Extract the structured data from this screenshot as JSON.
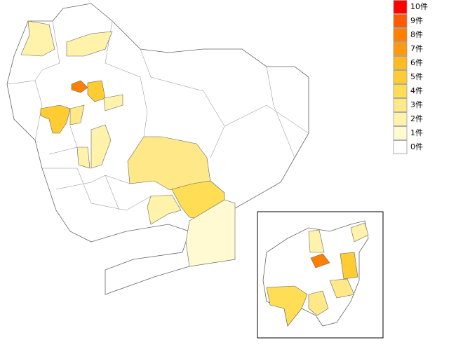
{
  "legend": {
    "items": [
      {
        "label": "10件",
        "value": 10,
        "color": "#ff0000"
      },
      {
        "label": "9件",
        "value": 9,
        "color": "#ff5a00"
      },
      {
        "label": "8件",
        "value": 8,
        "color": "#ff8000"
      },
      {
        "label": "7件",
        "value": 7,
        "color": "#ff9a10"
      },
      {
        "label": "6件",
        "value": 6,
        "color": "#ffbb22"
      },
      {
        "label": "5件",
        "value": 5,
        "color": "#ffcc33"
      },
      {
        "label": "4件",
        "value": 4,
        "color": "#ffdd55"
      },
      {
        "label": "3件",
        "value": 3,
        "color": "#ffe888"
      },
      {
        "label": "2件",
        "value": 2,
        "color": "#fff2aa"
      },
      {
        "label": "1件",
        "value": 1,
        "color": "#fffad2"
      },
      {
        "label": "0件",
        "value": 0,
        "color": "#ffffff"
      }
    ]
  },
  "map": {
    "regions": [
      2,
      2,
      8,
      5,
      5,
      3,
      3,
      4,
      1,
      2,
      2,
      2,
      2,
      8,
      5,
      4,
      3,
      2,
      2,
      3
    ]
  }
}
